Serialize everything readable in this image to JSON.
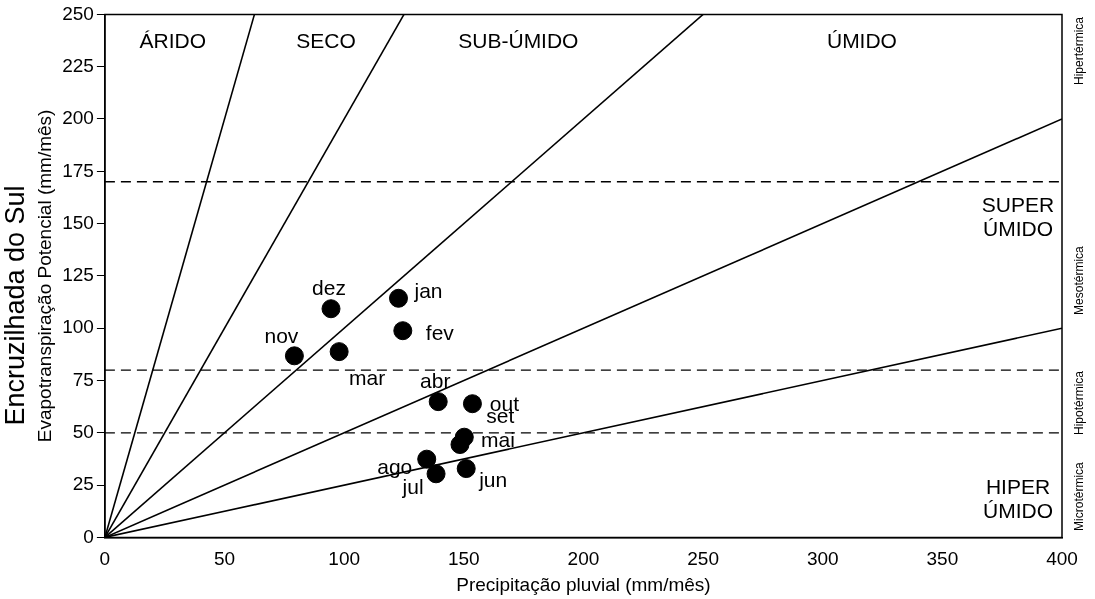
{
  "chart_data": {
    "type": "scatter",
    "title": "Encruzilhada do Sul",
    "xlabel": "Precipitação pluvial (mm/mês)",
    "ylabel": "Evapotranspiração Potencial (mm/mês)",
    "xlim": [
      0,
      400
    ],
    "xticks": [
      0,
      50,
      100,
      150,
      200,
      250,
      300,
      350,
      400
    ],
    "ylim": [
      0,
      250
    ],
    "yticks": [
      0,
      25,
      50,
      75,
      100,
      125,
      150,
      175,
      200,
      225,
      250
    ],
    "grid": false,
    "legend": false,
    "marker": "circle",
    "x": [
      79.2,
      94.5,
      97.9,
      122.7,
      124.5,
      139.3,
      153.6,
      150.2,
      148.4,
      134.5,
      138.4,
      151.0
    ],
    "series": [
      {
        "color": "#000000",
        "values": [
          86.8,
          109.3,
          88.8,
          114.3,
          98.8,
          64.9,
          63.9,
          47.9,
          44.4,
          37.4,
          30.4,
          32.9
        ]
      },
      {
        "type": "line",
        "marker": "none",
        "color": "#000000",
        "x": [
          0,
          62.5
        ],
        "values": [
          0,
          250
        ]
      },
      {
        "type": "line",
        "marker": "none",
        "color": "#000000",
        "x": [
          0,
          125
        ],
        "values": [
          0,
          250
        ]
      },
      {
        "type": "line",
        "marker": "none",
        "color": "#000000",
        "x": [
          0,
          250
        ],
        "values": [
          0,
          250
        ]
      },
      {
        "type": "line",
        "marker": "none",
        "color": "#000000",
        "x": [
          0,
          400
        ],
        "values": [
          0,
          200
        ]
      },
      {
        "type": "line",
        "marker": "none",
        "color": "#000000",
        "x": [
          0,
          400
        ],
        "values": [
          0,
          100
        ]
      }
    ],
    "ref_lines": [
      {
        "axis": "y",
        "value": 170,
        "line_style": "dashed",
        "color": "#000000"
      },
      {
        "axis": "y",
        "value": 80,
        "line_style": "dashed",
        "color": "#000000"
      },
      {
        "axis": "y",
        "value": 50,
        "line_style": "dashed",
        "color": "#000000"
      }
    ],
    "annotations": [
      "ÁRIDO",
      "SECO",
      "SUB-ÚMIDO",
      "ÚMIDO",
      "SUPER\nÚMIDO",
      "HIPER\nÚMIDO",
      "Hipertérmica",
      "Mesotérmica",
      "Hipotérmica",
      "Microtérmica",
      {
        "text": "dez",
        "x": 94.5,
        "y": 109.3
      },
      {
        "text": "jan",
        "x": 122.7,
        "y": 114.3
      },
      {
        "text": "nov",
        "x": 79.2,
        "y": 86.8
      },
      {
        "text": "fev",
        "x": 124.5,
        "y": 98.8
      },
      {
        "text": "mar",
        "x": 97.9,
        "y": 88.8
      },
      {
        "text": "abr",
        "x": 139.3,
        "y": 64.9
      },
      {
        "text": "out",
        "x": 153.6,
        "y": 63.9
      },
      {
        "text": "set",
        "x": 150.2,
        "y": 47.9
      },
      {
        "text": "mai",
        "x": 148.4,
        "y": 44.4
      },
      {
        "text": "ago",
        "x": 134.5,
        "y": 37.4
      },
      {
        "text": "jul",
        "x": 138.4,
        "y": 30.4
      },
      {
        "text": "jun",
        "x": 151.0,
        "y": 32.9
      }
    ]
  }
}
